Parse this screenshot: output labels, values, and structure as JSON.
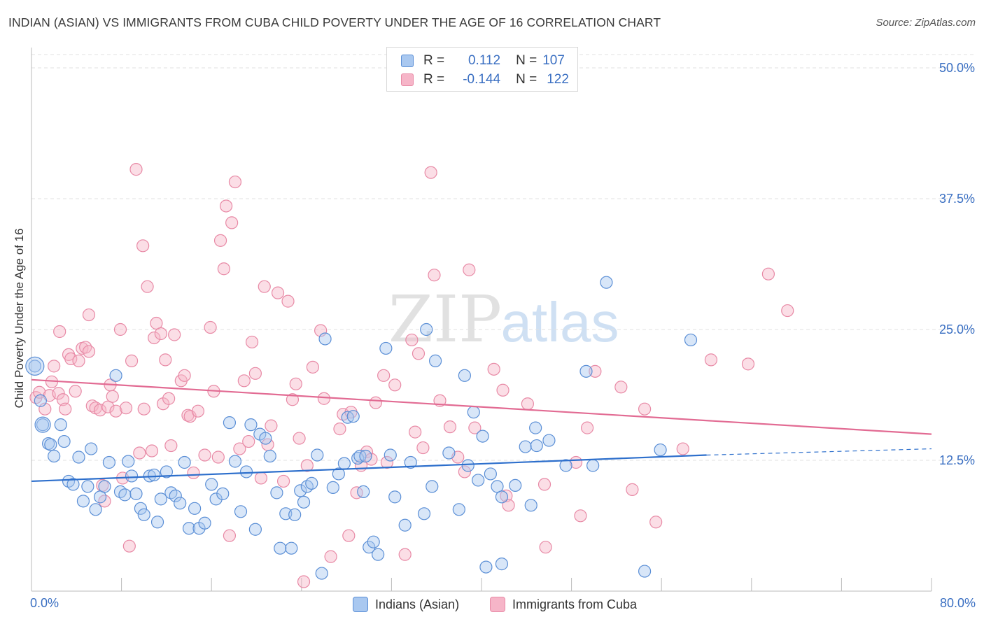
{
  "header": {
    "title": "INDIAN (ASIAN) VS IMMIGRANTS FROM CUBA CHILD POVERTY UNDER THE AGE OF 16 CORRELATION CHART",
    "source": "Source: ZipAtlas.com"
  },
  "watermark": {
    "zip": "ZIP",
    "atlas": "atlas"
  },
  "legend": {
    "rows": [
      {
        "r_label": "R =",
        "r_value": "0.112",
        "n_label": "N =",
        "n_value": "107",
        "color": "#a9c8f0"
      },
      {
        "r_label": "R =",
        "r_value": "-0.144",
        "n_label": "N =",
        "n_value": "122",
        "color": "#f6b5c8"
      }
    ]
  },
  "colors": {
    "blue_fill": "#a9c8f0",
    "blue_stroke": "#5b8fd6",
    "blue_line": "#2d6fcc",
    "pink_fill": "#f6b5c8",
    "pink_stroke": "#e88aa6",
    "pink_line": "#e26b93",
    "grid": "#e2e2e2",
    "axis_label": "#3a6fc2"
  },
  "chart_data": {
    "type": "scatter",
    "title": "INDIAN (ASIAN) VS IMMIGRANTS FROM CUBA CHILD POVERTY UNDER THE AGE OF 16 CORRELATION CHART",
    "xlabel": "",
    "ylabel": "Child Poverty Under the Age of 16",
    "xlim": [
      0,
      80
    ],
    "ylim": [
      0,
      50
    ],
    "x_tick_labels": [
      "0.0%",
      "80.0%"
    ],
    "y_ticks": [
      12.5,
      25.0,
      37.5,
      50.0
    ],
    "y_tick_labels": [
      "12.5%",
      "25.0%",
      "37.5%",
      "50.0%"
    ],
    "grid": true,
    "legend_placement": "top-center",
    "series": [
      {
        "name": "Indians (Asian)",
        "r": 0.112,
        "n": 107,
        "trend": {
          "x": [
            0,
            60
          ],
          "y": [
            10.5,
            13.0
          ],
          "dashed_extension_to": [
            80,
            13.6
          ]
        },
        "points": [
          [
            0.3,
            21.5
          ],
          [
            0.8,
            18.2
          ],
          [
            1.0,
            15.9
          ],
          [
            1.5,
            14.1
          ],
          [
            1.7,
            14.0
          ],
          [
            2.0,
            12.9
          ],
          [
            2.6,
            15.9
          ],
          [
            2.9,
            14.3
          ],
          [
            3.3,
            10.5
          ],
          [
            3.7,
            10.2
          ],
          [
            4.2,
            12.8
          ],
          [
            4.6,
            8.6
          ],
          [
            5.0,
            10.0
          ],
          [
            5.3,
            13.6
          ],
          [
            5.7,
            7.8
          ],
          [
            6.1,
            9.0
          ],
          [
            6.5,
            10.0
          ],
          [
            6.9,
            12.3
          ],
          [
            7.5,
            20.6
          ],
          [
            7.9,
            9.5
          ],
          [
            8.3,
            9.2
          ],
          [
            8.6,
            12.4
          ],
          [
            8.9,
            11.0
          ],
          [
            9.3,
            9.3
          ],
          [
            9.7,
            7.9
          ],
          [
            10.0,
            7.3
          ],
          [
            10.5,
            11.0
          ],
          [
            10.9,
            11.1
          ],
          [
            11.2,
            6.6
          ],
          [
            11.5,
            8.8
          ],
          [
            12.0,
            11.4
          ],
          [
            12.4,
            9.4
          ],
          [
            12.8,
            9.1
          ],
          [
            13.2,
            8.4
          ],
          [
            13.6,
            12.3
          ],
          [
            14.0,
            6.0
          ],
          [
            14.5,
            7.9
          ],
          [
            14.9,
            6.0
          ],
          [
            15.4,
            6.5
          ],
          [
            16.0,
            10.2
          ],
          [
            16.4,
            8.8
          ],
          [
            17.0,
            9.3
          ],
          [
            17.6,
            16.1
          ],
          [
            18.1,
            12.4
          ],
          [
            18.6,
            7.6
          ],
          [
            19.1,
            11.4
          ],
          [
            19.5,
            15.9
          ],
          [
            19.9,
            5.9
          ],
          [
            20.3,
            15.0
          ],
          [
            20.8,
            14.6
          ],
          [
            21.2,
            12.9
          ],
          [
            21.8,
            9.4
          ],
          [
            22.1,
            4.1
          ],
          [
            22.6,
            7.4
          ],
          [
            23.1,
            4.1
          ],
          [
            23.4,
            7.3
          ],
          [
            23.9,
            9.6
          ],
          [
            24.2,
            8.5
          ],
          [
            24.5,
            10.0
          ],
          [
            24.9,
            10.3
          ],
          [
            25.4,
            13.0
          ],
          [
            26.1,
            24.1
          ],
          [
            25.8,
            1.7
          ],
          [
            26.8,
            9.9
          ],
          [
            27.3,
            11.2
          ],
          [
            27.8,
            12.2
          ],
          [
            28.1,
            16.6
          ],
          [
            28.6,
            16.7
          ],
          [
            29.0,
            12.7
          ],
          [
            29.2,
            12.9
          ],
          [
            29.5,
            9.5
          ],
          [
            29.7,
            12.9
          ],
          [
            30.0,
            4.2
          ],
          [
            30.4,
            4.7
          ],
          [
            30.8,
            3.5
          ],
          [
            31.5,
            23.2
          ],
          [
            31.9,
            13.0
          ],
          [
            32.3,
            9.0
          ],
          [
            33.2,
            6.3
          ],
          [
            33.7,
            12.3
          ],
          [
            34.9,
            7.4
          ],
          [
            35.1,
            25.0
          ],
          [
            35.6,
            10.0
          ],
          [
            35.9,
            22.0
          ],
          [
            37.1,
            13.2
          ],
          [
            38.0,
            7.8
          ],
          [
            38.5,
            20.6
          ],
          [
            38.8,
            12.0
          ],
          [
            39.3,
            17.1
          ],
          [
            39.7,
            10.6
          ],
          [
            40.1,
            14.8
          ],
          [
            40.4,
            2.3
          ],
          [
            40.8,
            11.2
          ],
          [
            41.4,
            10.0
          ],
          [
            41.8,
            2.6
          ],
          [
            41.8,
            9.0
          ],
          [
            43.0,
            10.1
          ],
          [
            43.9,
            13.8
          ],
          [
            44.4,
            8.2
          ],
          [
            44.8,
            15.6
          ],
          [
            44.9,
            13.9
          ],
          [
            46.0,
            14.4
          ],
          [
            47.5,
            12.0
          ],
          [
            49.3,
            21.0
          ],
          [
            49.9,
            12.0
          ],
          [
            51.1,
            29.5
          ],
          [
            54.5,
            1.9
          ],
          [
            55.9,
            13.5
          ],
          [
            58.6,
            24.0
          ]
        ]
      },
      {
        "name": "Immigrants from Cuba",
        "r": -0.144,
        "n": 122,
        "trend": {
          "x": [
            0,
            80
          ],
          "y": [
            20.2,
            15.0
          ]
        },
        "points": [
          [
            0.4,
            18.5
          ],
          [
            0.7,
            19.0
          ],
          [
            1.2,
            17.4
          ],
          [
            1.6,
            18.7
          ],
          [
            1.8,
            20.0
          ],
          [
            2.0,
            21.5
          ],
          [
            2.4,
            18.9
          ],
          [
            2.5,
            24.8
          ],
          [
            2.8,
            18.3
          ],
          [
            3.0,
            17.4
          ],
          [
            3.3,
            22.6
          ],
          [
            3.5,
            22.2
          ],
          [
            3.9,
            19.1
          ],
          [
            4.2,
            22.0
          ],
          [
            4.5,
            23.2
          ],
          [
            4.8,
            23.3
          ],
          [
            5.1,
            22.9
          ],
          [
            5.1,
            26.4
          ],
          [
            5.4,
            17.7
          ],
          [
            5.7,
            17.5
          ],
          [
            6.1,
            17.3
          ],
          [
            6.3,
            10.1
          ],
          [
            6.5,
            8.6
          ],
          [
            6.8,
            17.6
          ],
          [
            7.0,
            19.7
          ],
          [
            7.2,
            18.6
          ],
          [
            7.5,
            17.2
          ],
          [
            7.9,
            25.0
          ],
          [
            8.1,
            10.8
          ],
          [
            8.4,
            17.5
          ],
          [
            8.7,
            4.3
          ],
          [
            8.9,
            22.0
          ],
          [
            9.3,
            40.3
          ],
          [
            9.6,
            13.2
          ],
          [
            9.9,
            33.0
          ],
          [
            10.0,
            17.4
          ],
          [
            10.3,
            29.1
          ],
          [
            10.7,
            13.4
          ],
          [
            10.9,
            24.2
          ],
          [
            11.1,
            25.6
          ],
          [
            11.5,
            24.6
          ],
          [
            11.7,
            17.9
          ],
          [
            11.9,
            22.1
          ],
          [
            12.2,
            18.4
          ],
          [
            12.4,
            13.9
          ],
          [
            12.7,
            24.5
          ],
          [
            13.3,
            20.1
          ],
          [
            13.6,
            20.6
          ],
          [
            13.9,
            16.8
          ],
          [
            14.1,
            16.7
          ],
          [
            14.4,
            11.3
          ],
          [
            14.8,
            17.2
          ],
          [
            15.4,
            13.0
          ],
          [
            15.9,
            25.2
          ],
          [
            16.2,
            19.1
          ],
          [
            16.6,
            12.8
          ],
          [
            16.8,
            33.5
          ],
          [
            17.1,
            30.8
          ],
          [
            17.3,
            36.8
          ],
          [
            17.6,
            5.3
          ],
          [
            17.8,
            35.2
          ],
          [
            18.1,
            39.1
          ],
          [
            18.5,
            13.6
          ],
          [
            18.9,
            20.1
          ],
          [
            19.3,
            14.3
          ],
          [
            19.6,
            23.8
          ],
          [
            19.9,
            20.8
          ],
          [
            20.4,
            10.8
          ],
          [
            20.7,
            29.1
          ],
          [
            21.0,
            14.0
          ],
          [
            21.3,
            15.8
          ],
          [
            21.9,
            28.5
          ],
          [
            22.4,
            10.5
          ],
          [
            22.8,
            27.7
          ],
          [
            23.2,
            18.3
          ],
          [
            23.5,
            19.8
          ],
          [
            24.2,
            0.9
          ],
          [
            23.8,
            14.6
          ],
          [
            24.5,
            12.0
          ],
          [
            25.0,
            21.4
          ],
          [
            25.7,
            24.9
          ],
          [
            26.0,
            18.4
          ],
          [
            26.6,
            3.3
          ],
          [
            27.4,
            15.5
          ],
          [
            27.7,
            16.9
          ],
          [
            28.2,
            5.3
          ],
          [
            28.4,
            17.1
          ],
          [
            28.9,
            9.4
          ],
          [
            29.3,
            12.0
          ],
          [
            29.8,
            13.3
          ],
          [
            30.2,
            12.6
          ],
          [
            30.6,
            18.0
          ],
          [
            31.3,
            20.6
          ],
          [
            31.6,
            12.3
          ],
          [
            32.3,
            19.7
          ],
          [
            33.2,
            3.5
          ],
          [
            33.8,
            24.0
          ],
          [
            34.1,
            15.2
          ],
          [
            34.4,
            22.7
          ],
          [
            34.8,
            13.7
          ],
          [
            35.5,
            40.0
          ],
          [
            35.8,
            30.2
          ],
          [
            36.3,
            18.2
          ],
          [
            37.2,
            15.7
          ],
          [
            37.9,
            12.8
          ],
          [
            38.5,
            11.4
          ],
          [
            38.9,
            30.7
          ],
          [
            39.4,
            15.6
          ],
          [
            41.1,
            21.2
          ],
          [
            41.9,
            19.2
          ],
          [
            42.2,
            9.1
          ],
          [
            42.4,
            8.2
          ],
          [
            44.1,
            17.9
          ],
          [
            45.6,
            10.2
          ],
          [
            45.7,
            4.2
          ],
          [
            48.4,
            12.3
          ],
          [
            48.8,
            7.2
          ],
          [
            49.4,
            15.6
          ],
          [
            50.1,
            21.0
          ],
          [
            52.4,
            19.5
          ],
          [
            53.4,
            9.7
          ],
          [
            54.5,
            17.4
          ],
          [
            55.5,
            6.6
          ],
          [
            57.9,
            13.6
          ],
          [
            60.4,
            22.1
          ],
          [
            63.7,
            21.7
          ],
          [
            65.5,
            30.3
          ],
          [
            67.2,
            26.8
          ]
        ]
      }
    ]
  },
  "bottom_legend": [
    {
      "label": "Indians (Asian)"
    },
    {
      "label": "Immigrants from Cuba"
    }
  ]
}
